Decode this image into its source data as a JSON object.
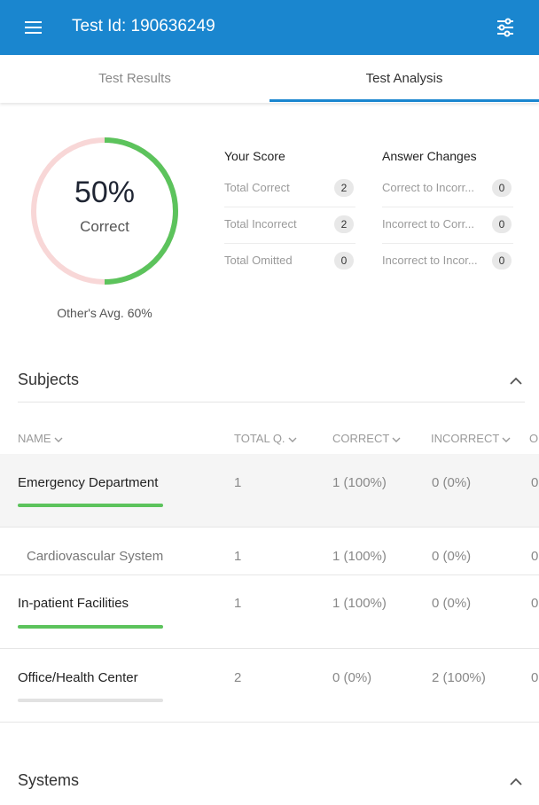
{
  "appbar": {
    "title": "Test Id: 190636249",
    "menu_icon": "menu-icon",
    "filter_icon": "sliders-icon",
    "color": "#1a86cf"
  },
  "tabs": [
    {
      "label": "Test Results",
      "active": false
    },
    {
      "label": "Test Analysis",
      "active": true
    }
  ],
  "score": {
    "percent": "50%",
    "percent_value": 0.5,
    "label": "Correct",
    "others_avg": "Other's Avg. 60%",
    "correct_color": "#5cc35c",
    "remaining_color": "#f8d7d7"
  },
  "your_score": {
    "title": "Your Score",
    "rows": [
      {
        "label": "Total Correct",
        "value": "2"
      },
      {
        "label": "Total Incorrect",
        "value": "2"
      },
      {
        "label": "Total Omitted",
        "value": "0"
      }
    ]
  },
  "answer_changes": {
    "title": "Answer Changes",
    "rows": [
      {
        "label": "Correct to Incorr...",
        "value": "0"
      },
      {
        "label": "Incorrect to Corr...",
        "value": "0"
      },
      {
        "label": "Incorrect to Incor...",
        "value": "0"
      }
    ]
  },
  "subjects": {
    "title": "Subjects",
    "columns": [
      "NAME",
      "TOTAL Q.",
      "CORRECT",
      "INCORRECT",
      "O"
    ],
    "rows": [
      {
        "name": "Emergency Department",
        "total": "1",
        "correct": "1 (100%)",
        "incorrect": "0 (0%)",
        "omitted": "0",
        "bar_fraction": 1.0
      },
      {
        "name": "Cardiovascular System",
        "total": "1",
        "correct": "1 (100%)",
        "incorrect": "0 (0%)",
        "omitted": "0"
      },
      {
        "name": "In-patient Facilities",
        "total": "1",
        "correct": "1 (100%)",
        "incorrect": "0 (0%)",
        "omitted": "0",
        "bar_fraction": 1.0
      },
      {
        "name": "Office/Health Center",
        "total": "2",
        "correct": "0 (0%)",
        "incorrect": "2 (100%)",
        "omitted": "0",
        "bar_fraction": 0.0
      }
    ]
  },
  "systems": {
    "title": "Systems"
  },
  "colors": {
    "correct_bar": "#5cc35c",
    "empty_bar": "#e2e2e2",
    "tab_indicator": "#1a86cf"
  }
}
